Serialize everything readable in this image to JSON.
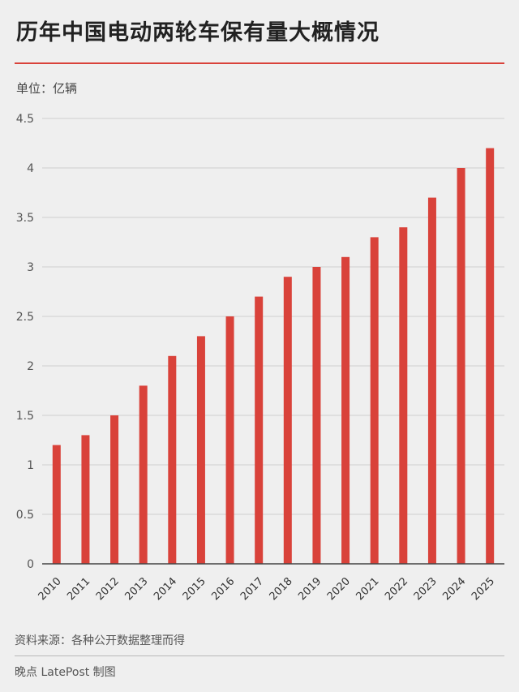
{
  "header": {
    "title": "历年中国电动两轮车保有量大概情况",
    "unit": "单位：亿辆"
  },
  "footer": {
    "source": "资料来源：各种公开数据整理而得",
    "credit": "晚点 LatePost 制图"
  },
  "colors": {
    "bar": "#d9423a",
    "grid": "#cfcfcf",
    "axis": "#444444"
  },
  "chart_data": {
    "type": "bar",
    "title": "历年中国电动两轮车保有量大概情况",
    "ylabel": "单位：亿辆",
    "ylim": [
      0,
      4.5
    ],
    "yticks": [
      "0",
      "0.5",
      "1",
      "1.5",
      "2",
      "2.5",
      "3",
      "3.5",
      "4",
      "4.5"
    ],
    "grid": true,
    "categories": [
      "2010",
      "2011",
      "2012",
      "2013",
      "2014",
      "2015",
      "2016",
      "2017",
      "2018",
      "2019",
      "2020",
      "2021",
      "2022",
      "2023",
      "2024",
      "2025"
    ],
    "values": [
      1.2,
      1.3,
      1.5,
      1.8,
      2.1,
      2.3,
      2.5,
      2.7,
      2.9,
      3.0,
      3.1,
      3.3,
      3.4,
      3.7,
      4.0,
      4.2
    ]
  }
}
